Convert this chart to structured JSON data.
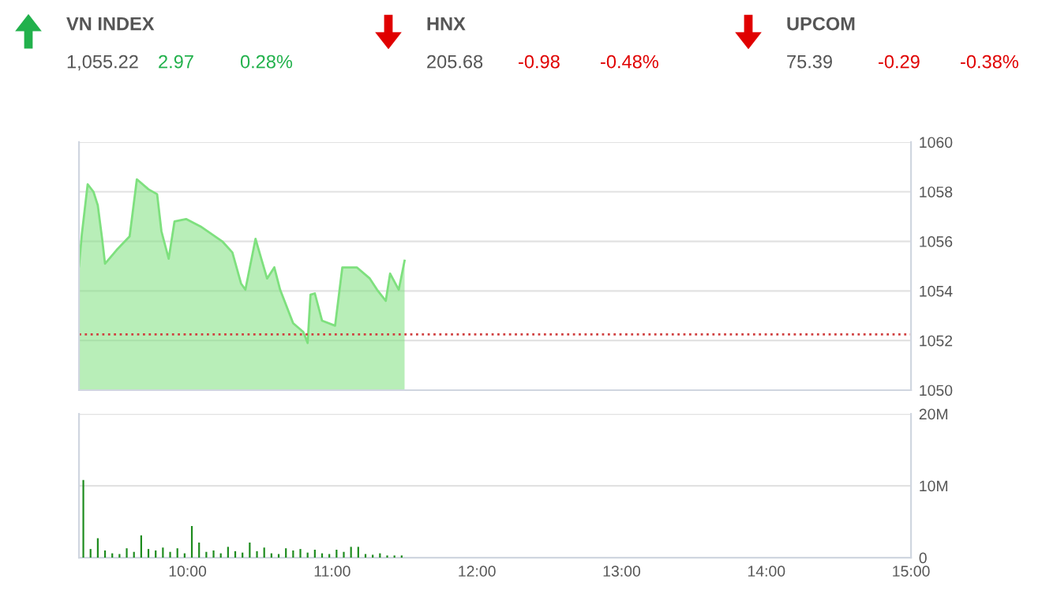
{
  "chart_data": [
    {
      "type": "other",
      "categories": [
        "VN INDEX",
        "HNX",
        "UPCOM"
      ],
      "value_labels": [
        "1,055.22",
        "205.68",
        "75.39"
      ],
      "colors": [
        "#22b14c",
        "#e00000",
        "#e00000"
      ],
      "series": [
        {
          "values": [
            2.97,
            -0.98,
            -0.29
          ],
          "value_labels": [
            "2.97",
            "-0.98",
            "-0.29"
          ]
        },
        {
          "values": [
            0.28,
            -0.48,
            -0.38
          ],
          "value_labels": [
            "0.28%",
            "-0.48%",
            "-0.38%"
          ]
        }
      ]
    },
    {
      "type": "area",
      "tick_labels": "y",
      "grid": "y",
      "xlim": [
        9.25,
        15
      ],
      "ylim": [
        1050,
        1060
      ],
      "yticks": [
        1050,
        1052,
        1054,
        1056,
        1058,
        1060
      ],
      "ref_lines": [
        {
          "axis": "y",
          "value": 1052.25,
          "color": "#d04040",
          "line_style": "dotted"
        }
      ],
      "series": [
        {
          "color": "#7ee07e",
          "x": [
            9.25,
            9.27,
            9.31,
            9.35,
            9.38,
            9.41,
            9.43,
            9.51,
            9.6,
            9.65,
            9.73,
            9.79,
            9.82,
            9.87,
            9.91,
            9.99,
            10.09,
            10.24,
            10.31,
            10.37,
            10.4,
            10.47,
            10.51,
            10.55,
            10.6,
            10.64,
            10.73,
            10.8,
            10.83,
            10.85,
            10.88,
            10.93,
            11.02,
            11.07,
            11.17,
            11.26,
            11.31,
            11.37,
            11.4,
            11.46,
            11.5
          ],
          "values": [
            1055.0,
            1056.3,
            1058.3,
            1058.0,
            1057.45,
            1056.1,
            1055.1,
            1055.65,
            1056.2,
            1058.5,
            1058.1,
            1057.9,
            1056.4,
            1055.3,
            1056.8,
            1056.9,
            1056.6,
            1056.0,
            1055.55,
            1054.3,
            1054.05,
            1056.1,
            1055.3,
            1054.5,
            1054.95,
            1054.05,
            1052.7,
            1052.35,
            1051.9,
            1053.85,
            1053.9,
            1052.8,
            1052.6,
            1054.95,
            1054.95,
            1054.5,
            1054.05,
            1053.6,
            1054.7,
            1054.05,
            1055.22
          ]
        }
      ]
    },
    {
      "type": "bar",
      "grid": "y",
      "xlim": [
        9.25,
        15
      ],
      "xticks": [
        {
          "value": 10,
          "label": "10:00"
        },
        {
          "value": 11,
          "label": "11:00"
        },
        {
          "value": 12,
          "label": "12:00"
        },
        {
          "value": 13,
          "label": "13:00"
        },
        {
          "value": 14,
          "label": "14:00"
        },
        {
          "value": 15,
          "label": "15:00"
        }
      ],
      "ylim": [
        0,
        20
      ],
      "yticks": [
        0,
        {
          "value": 10,
          "label": "10M"
        },
        {
          "value": 20,
          "label": "20M"
        }
      ],
      "series": [
        {
          "color": "#1e8c1e",
          "x": [
            9.28,
            9.33,
            9.38,
            9.43,
            9.48,
            9.53,
            9.58,
            9.63,
            9.68,
            9.73,
            9.78,
            9.83,
            9.88,
            9.93,
            9.98,
            10.03,
            10.08,
            10.13,
            10.18,
            10.23,
            10.28,
            10.33,
            10.38,
            10.43,
            10.48,
            10.53,
            10.58,
            10.63,
            10.68,
            10.73,
            10.78,
            10.83,
            10.88,
            10.93,
            10.98,
            11.03,
            11.08,
            11.13,
            11.18,
            11.23,
            11.28,
            11.33,
            11.38,
            11.43,
            11.48
          ],
          "values": [
            10.8,
            1.2,
            2.7,
            1.0,
            0.6,
            0.5,
            1.3,
            0.8,
            3.1,
            1.2,
            1.0,
            1.4,
            0.8,
            1.3,
            0.6,
            4.4,
            2.1,
            0.8,
            1.0,
            0.6,
            1.5,
            0.9,
            0.7,
            2.1,
            0.9,
            1.4,
            0.6,
            0.5,
            1.3,
            1.0,
            1.2,
            0.7,
            1.1,
            0.6,
            0.5,
            1.1,
            0.8,
            1.5,
            1.5,
            0.5,
            0.4,
            0.6,
            0.3,
            0.3,
            0.3
          ]
        }
      ]
    }
  ]
}
